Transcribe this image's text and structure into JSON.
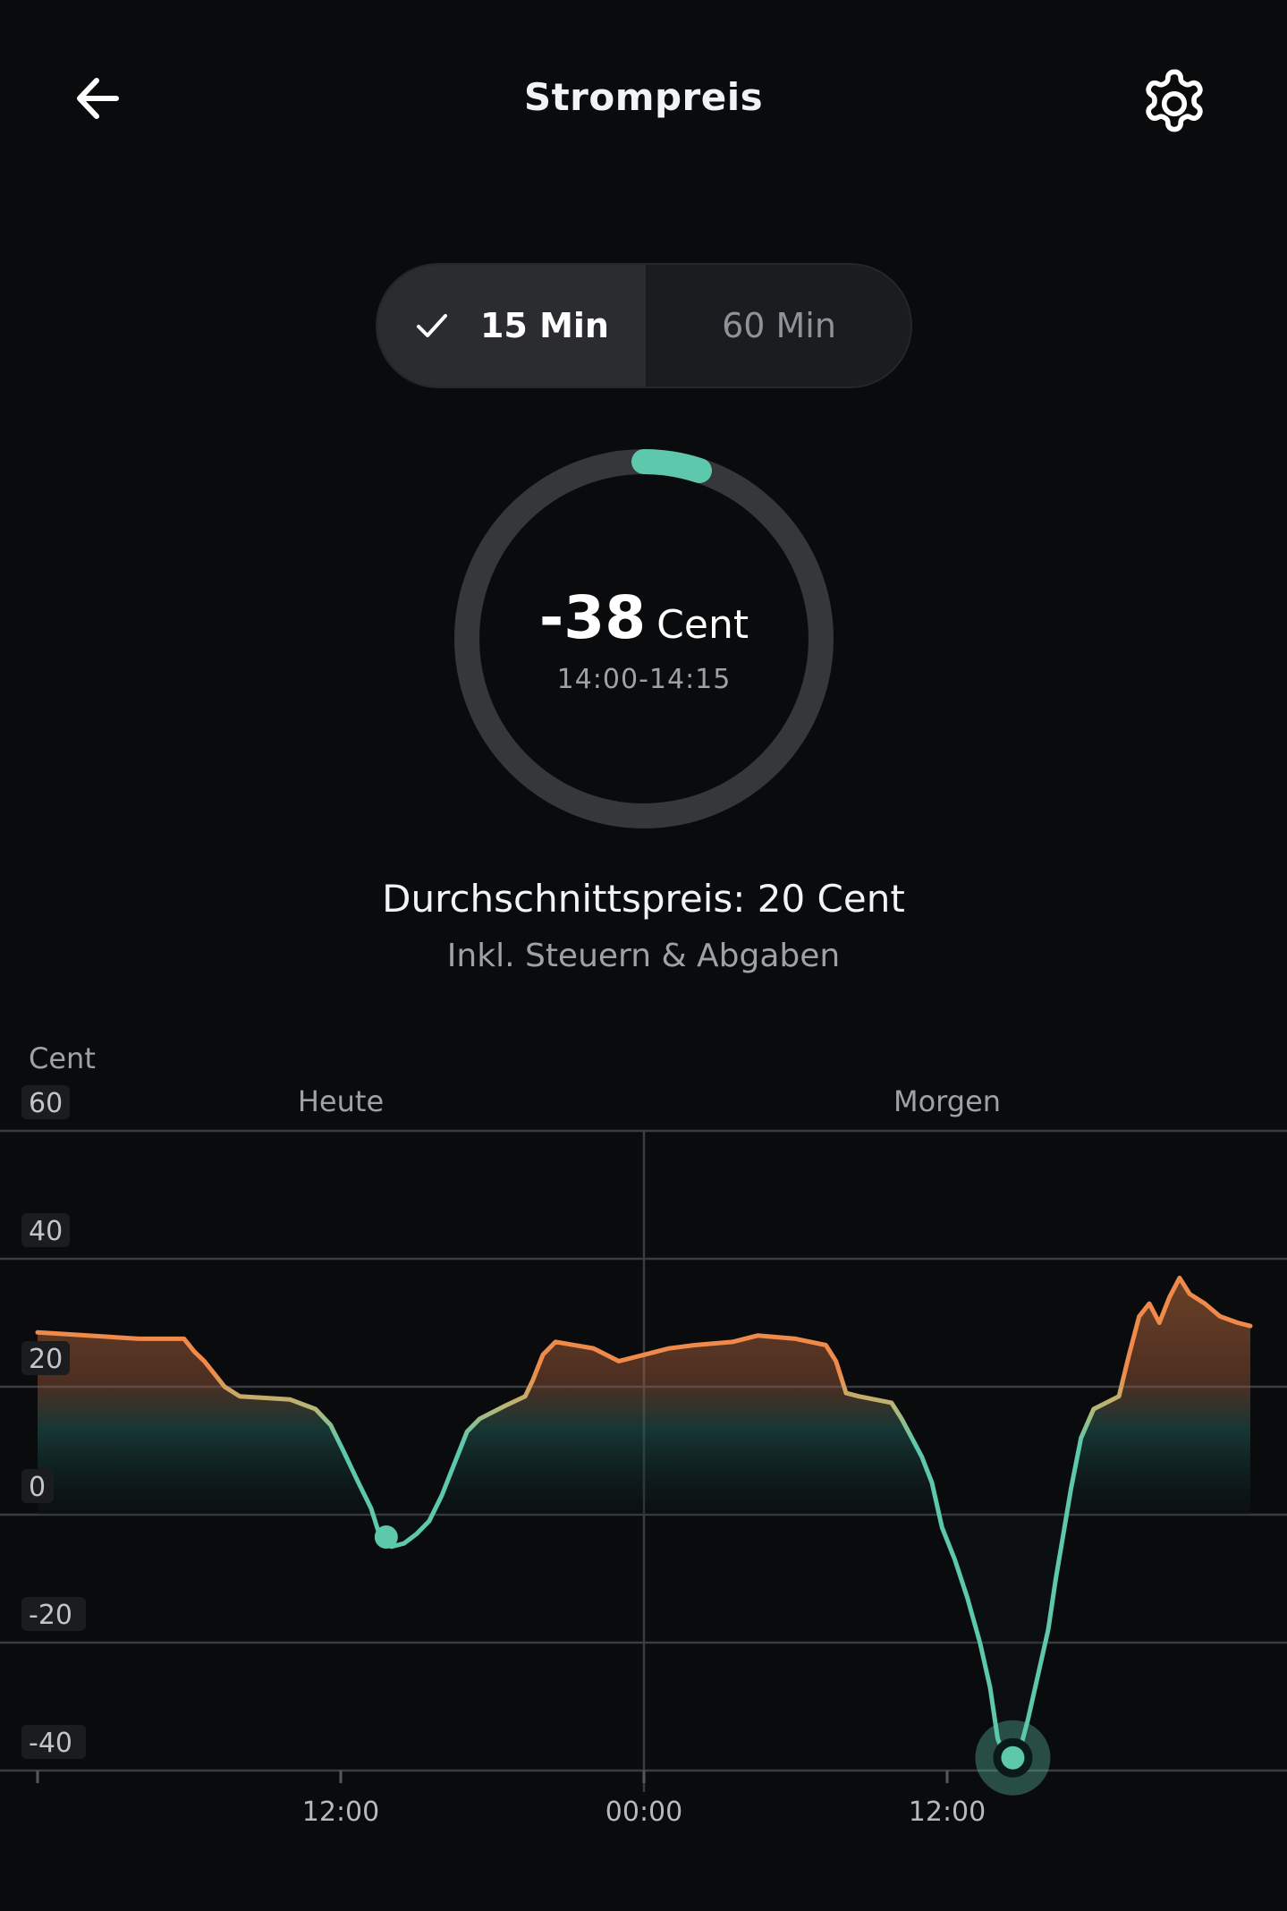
{
  "header": {
    "title": "Strompreis",
    "back_icon": "arrow-left-icon",
    "settings_icon": "gear-icon"
  },
  "toggle": {
    "options": [
      "15 Min",
      "60 Min"
    ],
    "selected": "15 Min"
  },
  "current": {
    "value": "-38",
    "unit": "Cent",
    "interval": "14:00-14:15",
    "accent": "#5ec8ad"
  },
  "average": {
    "label": "Durchschnittspreis: 20 Cent",
    "note": "Inkl. Steuern & Abgaben"
  },
  "chart_data": {
    "type": "line",
    "ylabel": "Cent",
    "ylim": [
      -45,
      60
    ],
    "yticks": [
      "60",
      "40",
      "20",
      "0",
      "-20",
      "-40"
    ],
    "xticks": [
      "12:00",
      "00:00",
      "12:00"
    ],
    "days": [
      "Heute",
      "Morgen"
    ],
    "x_start_hour": 0,
    "x_end_hour": 48,
    "colors": {
      "high": "#ef8a4a",
      "low": "#5ec8ad"
    },
    "series": [
      {
        "values": [
          [
            0,
            28.5
          ],
          [
            2,
            28
          ],
          [
            4,
            27.5
          ],
          [
            5.8,
            27.5
          ],
          [
            6.2,
            25.5
          ],
          [
            6.6,
            24
          ],
          [
            7,
            22
          ],
          [
            7.4,
            20
          ],
          [
            8,
            18.5
          ],
          [
            10,
            18
          ],
          [
            11,
            16.5
          ],
          [
            11.6,
            14
          ],
          [
            12.1,
            10
          ],
          [
            12.7,
            5
          ],
          [
            13.2,
            1
          ],
          [
            13.6,
            -4
          ],
          [
            14,
            -5
          ],
          [
            14.5,
            -4.5
          ],
          [
            15,
            -3
          ],
          [
            15.5,
            -1
          ],
          [
            16,
            3
          ],
          [
            16.5,
            8
          ],
          [
            17,
            13
          ],
          [
            17.5,
            15
          ],
          [
            18.5,
            17
          ],
          [
            19.3,
            18.5
          ],
          [
            19.6,
            21
          ],
          [
            20,
            25
          ],
          [
            20.5,
            27
          ],
          [
            22,
            26
          ],
          [
            23,
            24
          ],
          [
            24,
            25
          ],
          [
            25,
            26
          ],
          [
            26,
            26.5
          ],
          [
            27.5,
            27
          ],
          [
            28.5,
            28
          ],
          [
            30,
            27.5
          ],
          [
            31.2,
            26.5
          ],
          [
            31.6,
            24
          ],
          [
            32,
            19
          ],
          [
            32.5,
            18.5
          ],
          [
            33.8,
            17.5
          ],
          [
            34.2,
            15
          ],
          [
            34.6,
            12
          ],
          [
            35,
            9
          ],
          [
            35.4,
            5
          ],
          [
            35.8,
            -2
          ],
          [
            36.3,
            -7
          ],
          [
            36.8,
            -13
          ],
          [
            37.3,
            -20
          ],
          [
            37.7,
            -27
          ],
          [
            38,
            -35
          ],
          [
            38.3,
            -38
          ],
          [
            38.8,
            -38
          ],
          [
            39.2,
            -32
          ],
          [
            39.6,
            -25
          ],
          [
            40,
            -18
          ],
          [
            40.3,
            -10
          ],
          [
            40.6,
            -3
          ],
          [
            40.9,
            4
          ],
          [
            41.3,
            12
          ],
          [
            41.8,
            16.5
          ],
          [
            42.8,
            18.5
          ],
          [
            43.2,
            25
          ],
          [
            43.6,
            31
          ],
          [
            44,
            33
          ],
          [
            44.4,
            30
          ],
          [
            44.8,
            34
          ],
          [
            45.2,
            37
          ],
          [
            45.6,
            34.5
          ],
          [
            46.2,
            33
          ],
          [
            46.8,
            31
          ],
          [
            47.5,
            30
          ],
          [
            48,
            29.5
          ]
        ]
      }
    ],
    "markers": [
      {
        "x": 13.8,
        "y": -3.5,
        "kind": "point"
      },
      {
        "x": 38.6,
        "y": -38,
        "kind": "selected"
      }
    ]
  }
}
